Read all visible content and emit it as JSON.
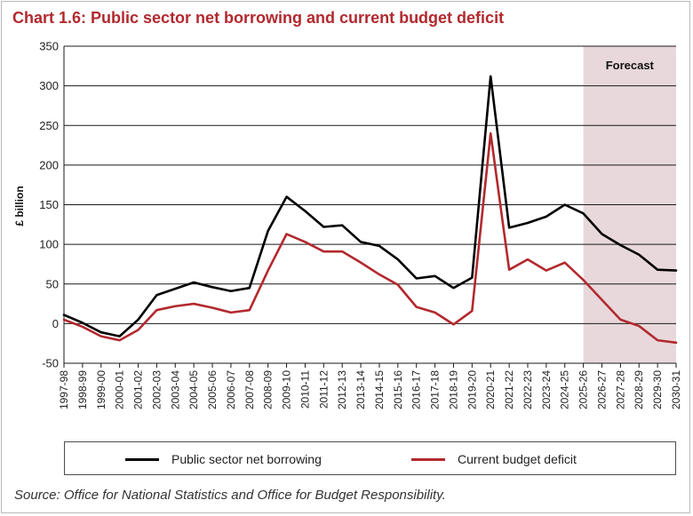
{
  "title": "Chart 1.6: Public sector net borrowing and current budget deficit",
  "source": "Source: Office for National Statistics and Office for Budget Responsibility.",
  "colors": {
    "title": "#b2292e",
    "forecast_shade": "#e8d8db"
  },
  "chart_data": {
    "type": "line",
    "title": "Chart 1.6: Public sector net borrowing and current budget deficit",
    "xlabel": "",
    "ylabel": "£ billion",
    "ylim": [
      -50,
      350
    ],
    "yticks": [
      -50,
      0,
      50,
      100,
      150,
      200,
      250,
      300,
      350
    ],
    "grid": true,
    "legend_position": "bottom",
    "forecast": {
      "label": "Forecast",
      "start": "2025-26",
      "end": "2030-31"
    },
    "categories": [
      "1997-98",
      "1998-99",
      "1999-00",
      "2000-01",
      "2001-02",
      "2002-03",
      "2003-04",
      "2004-05",
      "2005-06",
      "2006-07",
      "2007-08",
      "2008-09",
      "2009-10",
      "2010-11",
      "2011-12",
      "2012-13",
      "2013-14",
      "2014-15",
      "2015-16",
      "2016-17",
      "2017-18",
      "2018-19",
      "2019-20",
      "2020-21",
      "2021-22",
      "2022-23",
      "2023-24",
      "2024-25",
      "2025-26",
      "2026-27",
      "2027-28",
      "2028-29",
      "2029-30",
      "2030-31"
    ],
    "series": [
      {
        "name": "Public sector net borrowing",
        "color": "#000000",
        "values": [
          11,
          1,
          -11,
          -16,
          5,
          36,
          44,
          52,
          46,
          41,
          45,
          117,
          160,
          142,
          122,
          124,
          103,
          98,
          81,
          57,
          60,
          45,
          58,
          312,
          121,
          127,
          135,
          150,
          139,
          113,
          99,
          87,
          68,
          67
        ]
      },
      {
        "name": "Current budget deficit",
        "color": "#b2292e",
        "values": [
          5,
          -4,
          -16,
          -21,
          -8,
          17,
          22,
          25,
          20,
          14,
          17,
          67,
          113,
          103,
          91,
          91,
          77,
          62,
          49,
          21,
          14,
          -1,
          16,
          240,
          68,
          81,
          67,
          77,
          55,
          30,
          5,
          -3,
          -21,
          -24
        ]
      }
    ]
  }
}
